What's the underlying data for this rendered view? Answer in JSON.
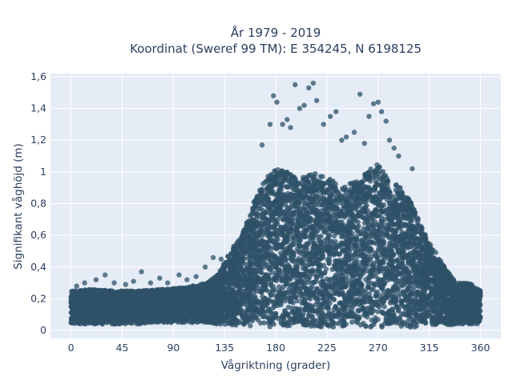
{
  "chart_data": {
    "type": "scatter",
    "title_line1": "År 1979 - 2019",
    "title_line2": "Koordinat (Sweref 99 TM): E 354245, N 6198125",
    "xlabel": "Vågriktning (grader)",
    "ylabel": "Signifikant våghöjd (m)",
    "xlim": [
      -18,
      378
    ],
    "ylim": [
      -0.05,
      1.62
    ],
    "xticks": [
      0,
      45,
      90,
      135,
      180,
      225,
      270,
      315,
      360
    ],
    "yticks": [
      0,
      0.2,
      0.4,
      0.6,
      0.8,
      1,
      1.2,
      1.4,
      1.6
    ],
    "ytick_labels": [
      "0",
      "0,2",
      "0,4",
      "0,6",
      "0,8",
      "1",
      "1,2",
      "1,4",
      "1,6"
    ],
    "grid": true,
    "marker_color": "#2f5168",
    "plot_bg": "#e5ecf6",
    "envelope": {
      "x": [
        0,
        20,
        40,
        60,
        80,
        100,
        120,
        130,
        140,
        150,
        160,
        170,
        180,
        190,
        200,
        210,
        220,
        230,
        240,
        250,
        260,
        270,
        280,
        290,
        300,
        310,
        320,
        330,
        340,
        350,
        360
      ],
      "ymax": [
        0.25,
        0.26,
        0.25,
        0.25,
        0.26,
        0.27,
        0.3,
        0.36,
        0.5,
        0.6,
        0.8,
        0.95,
        1.02,
        1.0,
        0.95,
        1.0,
        0.98,
        0.95,
        0.9,
        0.95,
        1.0,
        1.05,
        0.95,
        0.9,
        0.8,
        0.62,
        0.5,
        0.38,
        0.3,
        0.3,
        0.25
      ],
      "ymin": [
        0.04,
        0.04,
        0.04,
        0.04,
        0.05,
        0.05,
        0.05,
        0.04,
        0.03,
        0.03,
        0.02,
        0.02,
        0.02,
        0.02,
        0.02,
        0.02,
        0.02,
        0.02,
        0.02,
        0.02,
        0.02,
        0.02,
        0.02,
        0.02,
        0.02,
        0.03,
        0.03,
        0.03,
        0.04,
        0.04,
        0.04
      ]
    },
    "outliers": {
      "x": [
        178,
        181,
        186,
        190,
        197,
        201,
        205,
        209,
        213,
        216,
        222,
        228,
        233,
        242,
        249,
        254,
        262,
        266,
        270,
        273,
        277,
        280,
        284,
        175,
        193,
        238,
        258,
        288,
        168,
        300
      ],
      "y": [
        1.48,
        1.44,
        1.3,
        1.33,
        1.55,
        1.4,
        1.42,
        1.53,
        1.56,
        1.45,
        1.3,
        1.35,
        1.38,
        1.22,
        1.25,
        1.49,
        1.35,
        1.43,
        1.44,
        1.38,
        1.32,
        1.2,
        1.15,
        1.3,
        1.28,
        1.2,
        1.18,
        1.1,
        1.17,
        1.02
      ]
    },
    "low_scatter": {
      "x": [
        5,
        12,
        22,
        30,
        38,
        48,
        55,
        62,
        70,
        78,
        85,
        95,
        102,
        110,
        118,
        125,
        132
      ],
      "y": [
        0.28,
        0.3,
        0.32,
        0.35,
        0.3,
        0.29,
        0.31,
        0.37,
        0.3,
        0.33,
        0.3,
        0.35,
        0.32,
        0.34,
        0.4,
        0.46,
        0.45
      ]
    }
  }
}
